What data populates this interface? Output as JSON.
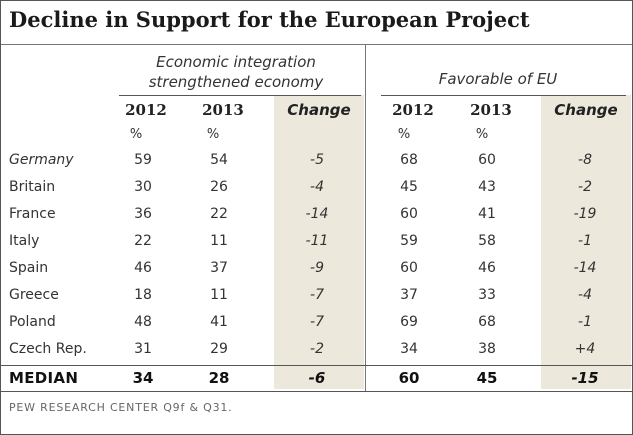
{
  "title": "Decline in Support for the European Project",
  "source": "PEW RESEARCH CENTER Q9f & Q31.",
  "groups": [
    {
      "label_line1": "Economic integration",
      "label_line2": "strengthened economy"
    },
    {
      "label_line1": "Favorable of EU",
      "label_line2": ""
    }
  ],
  "columns": {
    "y2012": "2012",
    "y2013": "2013",
    "change": "Change",
    "unit": "%"
  },
  "colors": {
    "shade": "#ece8dc",
    "rule": "#555555",
    "text": "#333333"
  },
  "chart_data": {
    "type": "table",
    "title": "Decline in Support for the European Project",
    "column_groups": [
      {
        "name": "Economic integration strengthened economy",
        "columns": [
          "2012",
          "2013",
          "Change"
        ]
      },
      {
        "name": "Favorable of EU",
        "columns": [
          "2012",
          "2013",
          "Change"
        ]
      }
    ],
    "unit": "%",
    "rows": [
      {
        "label": "Germany",
        "values": [
          "59",
          "54",
          "-5",
          "68",
          "60",
          "-8"
        ]
      },
      {
        "label": "Britain",
        "values": [
          "30",
          "26",
          "-4",
          "45",
          "43",
          "-2"
        ]
      },
      {
        "label": "France",
        "values": [
          "36",
          "22",
          "-14",
          "60",
          "41",
          "-19"
        ]
      },
      {
        "label": "Italy",
        "values": [
          "22",
          "11",
          "-11",
          "59",
          "58",
          "-1"
        ]
      },
      {
        "label": "Spain",
        "values": [
          "46",
          "37",
          "-9",
          "60",
          "46",
          "-14"
        ]
      },
      {
        "label": "Greece",
        "values": [
          "18",
          "11",
          "-7",
          "37",
          "33",
          "-4"
        ]
      },
      {
        "label": "Poland",
        "values": [
          "48",
          "41",
          "-7",
          "69",
          "68",
          "-1"
        ]
      },
      {
        "label": "Czech Rep.",
        "values": [
          "31",
          "29",
          "-2",
          "34",
          "38",
          "+4"
        ]
      }
    ],
    "median": {
      "label": "MEDIAN",
      "values": [
        "34",
        "28",
        "-6",
        "60",
        "45",
        "-15"
      ]
    }
  }
}
